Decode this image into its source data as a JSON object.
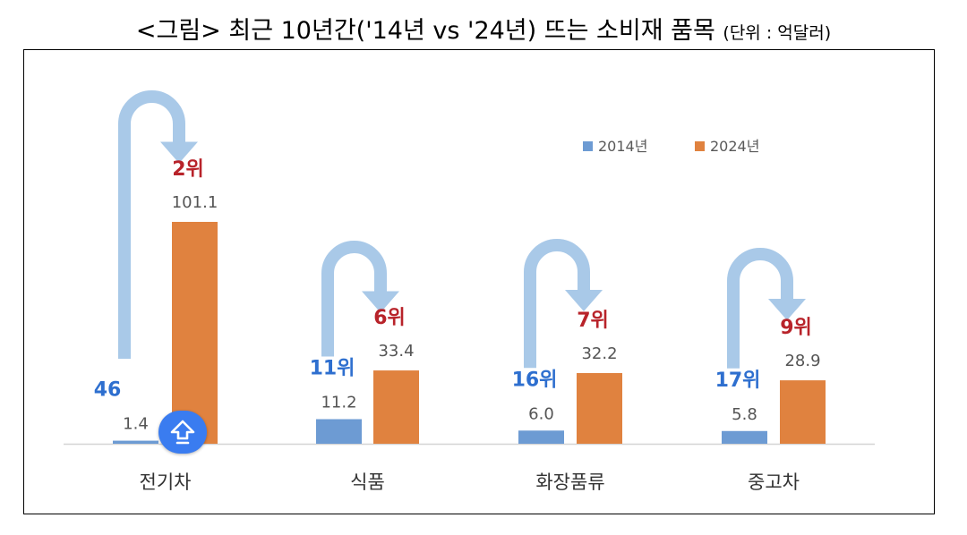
{
  "title": {
    "main": "<그림> 최근 10년간('14년 vs '24년) 뜨는 소비재 품목",
    "unit": "(단위 : 억달러)"
  },
  "colors": {
    "series_2014": "#6d9bd3",
    "series_2024": "#e0823f",
    "rank_2014": "#2e6fcf",
    "rank_2024": "#b8232a",
    "arrow": "#a9c9e8",
    "value_label": "#555555",
    "category_label": "#333333"
  },
  "badge": {
    "icon": "up-arrow-icon"
  },
  "chart_data": {
    "type": "bar",
    "categories": [
      "전기차",
      "식품",
      "화장품류",
      "중고차"
    ],
    "series": [
      {
        "name": "2014년",
        "values": [
          1.4,
          11.2,
          6.0,
          5.8
        ],
        "labels": [
          "1.4",
          "11.2",
          "6.0",
          "5.8"
        ],
        "ranks": [
          "46",
          "11위",
          "16위",
          "17위"
        ]
      },
      {
        "name": "2024년",
        "values": [
          101.1,
          33.4,
          32.2,
          28.9
        ],
        "labels": [
          "101.1",
          "33.4",
          "32.2",
          "28.9"
        ],
        "ranks": [
          "2위",
          "6위",
          "7위",
          "9위"
        ]
      }
    ],
    "ylim": [
      0,
      101.1
    ],
    "legend_position": "top-right",
    "grid": false
  }
}
